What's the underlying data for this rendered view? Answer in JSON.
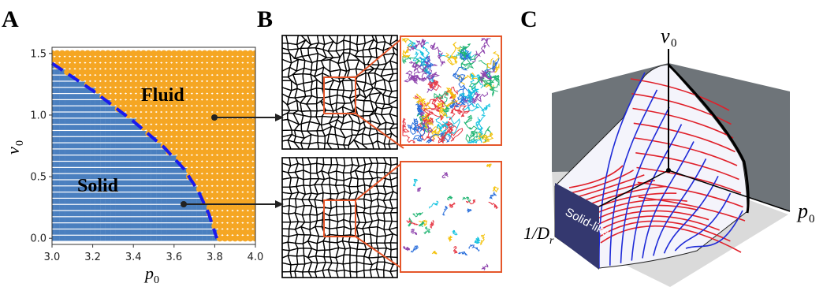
{
  "panels": {
    "A": "A",
    "B": "B",
    "C": "C"
  },
  "chart_data": [
    {
      "type": "scatter",
      "panel": "A",
      "xlabel": "p",
      "xlabel_sub": "0",
      "ylabel": "v",
      "ylabel_sub": "0",
      "xlim": [
        3.0,
        4.0
      ],
      "ylim": [
        -0.05,
        1.55
      ],
      "xticks": [
        "3.0",
        "3.2",
        "3.4",
        "3.6",
        "3.8",
        "4.0"
      ],
      "yticks": [
        "0.0",
        "0.5",
        "1.0",
        "1.5"
      ],
      "x_grid": {
        "start": 3.0,
        "stop": 4.0,
        "step": 0.025
      },
      "y_grid": {
        "start": 0.0,
        "stop": 1.5,
        "step": 0.05
      },
      "boundary": {
        "style": "dashed",
        "color": "#1a1aee",
        "p0": [
          3.0,
          3.2,
          3.4,
          3.55,
          3.65,
          3.72,
          3.77,
          3.8,
          3.81
        ],
        "v0": [
          1.42,
          1.2,
          0.95,
          0.74,
          0.56,
          0.38,
          0.2,
          0.05,
          0.0
        ]
      },
      "series": [
        {
          "name": "Fluid",
          "marker": "circle",
          "color": "#f5a623"
        },
        {
          "name": "Solid",
          "marker": "square",
          "color": "#4a7fbf"
        }
      ],
      "region_labels": [
        "Fluid",
        "Solid"
      ],
      "highlighted_points": [
        {
          "p0": 3.8,
          "v0": 1.0
        },
        {
          "p0": 3.65,
          "v0": 0.3
        }
      ]
    },
    {
      "type": "diagram",
      "panel": "B",
      "rows": [
        "fluid",
        "solid"
      ],
      "inset_colors": [
        "#e63946",
        "#2a6fdb",
        "#21b573",
        "#f4c20d",
        "#16c3e0",
        "#8e44ad"
      ],
      "frame_color": "#e5562a"
    },
    {
      "type": "surface",
      "panel": "C",
      "axes": {
        "vertical": "v",
        "vertical_sub": "0",
        "right": "p",
        "right_sub": "0",
        "left": "1/D",
        "left_sub": "r"
      },
      "region_label": "Solid-like",
      "grid_colors": {
        "red": "#e0202a",
        "blue": "#1f2bd8"
      },
      "wall_color": "#6e7479",
      "floor_color": "#d9d9d9",
      "band_color": "#3b3d7a"
    }
  ]
}
